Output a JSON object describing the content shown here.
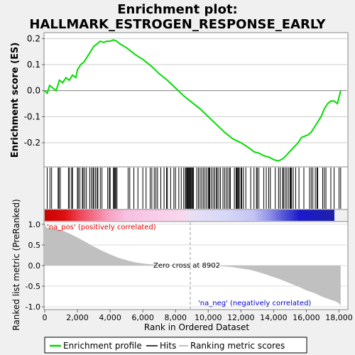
{
  "title_line1": "Enrichment plot:",
  "title_line2": "HALLMARK_ESTROGEN_RESPONSE_EARLY",
  "legend": {
    "profile": "Enrichment profile",
    "hits": "Hits",
    "metric": "Ranking metric scores"
  },
  "colors": {
    "profile": "#00dd00",
    "hits": "#000000",
    "metric_fill": "#c0c0c0",
    "pos_label": "#e00000",
    "neg_label": "#0000cc"
  },
  "chart_data": [
    {
      "type": "line",
      "name": "enrichment-profile",
      "ylabel": "Enrichment score (ES)",
      "ylim": [
        -0.29,
        0.22
      ],
      "yticks": [
        -0.2,
        -0.1,
        0.0,
        0.1,
        0.2
      ],
      "ytick_labels": [
        "-0.2",
        "-0.1",
        "0.0",
        "0.1",
        "0.2"
      ],
      "xlim": [
        0,
        18500
      ],
      "grid": true,
      "x": [
        0,
        150,
        300,
        500,
        700,
        900,
        1100,
        1300,
        1500,
        1700,
        1900,
        2000,
        2200,
        2400,
        2600,
        2800,
        3000,
        3200,
        3400,
        3600,
        3800,
        4000,
        4200,
        4400,
        4600,
        5000,
        5500,
        6000,
        6500,
        7000,
        7500,
        8000,
        8500,
        8900,
        9500,
        10000,
        10500,
        11000,
        11500,
        12000,
        12500,
        12800,
        13100,
        13400,
        13700,
        14000,
        14300,
        14600,
        14900,
        15200,
        15500,
        15700,
        15900,
        16100,
        16300,
        16500,
        16700,
        16900,
        17100,
        17300,
        17500,
        17700,
        17900,
        18100
      ],
      "y": [
        0.0,
        -0.01,
        0.02,
        0.01,
        0.0,
        0.04,
        0.03,
        0.05,
        0.04,
        0.06,
        0.05,
        0.08,
        0.1,
        0.11,
        0.13,
        0.15,
        0.17,
        0.18,
        0.19,
        0.185,
        0.19,
        0.19,
        0.195,
        0.19,
        0.18,
        0.165,
        0.14,
        0.12,
        0.095,
        0.065,
        0.04,
        0.01,
        -0.02,
        -0.04,
        -0.07,
        -0.1,
        -0.13,
        -0.16,
        -0.185,
        -0.2,
        -0.22,
        -0.235,
        -0.24,
        -0.25,
        -0.255,
        -0.265,
        -0.27,
        -0.26,
        -0.24,
        -0.22,
        -0.2,
        -0.18,
        -0.175,
        -0.17,
        -0.16,
        -0.14,
        -0.12,
        -0.1,
        -0.07,
        -0.05,
        -0.04,
        -0.04,
        -0.05,
        0.0
      ]
    },
    {
      "type": "line",
      "name": "ranked-list-metric",
      "ylabel": "Ranked list metric (PreRanked)",
      "xlabel": "Rank in Ordered Dataset",
      "ylim": [
        -1.05,
        1.05
      ],
      "yticks": [
        -1.0,
        -0.5,
        0.0,
        0.5,
        1.0
      ],
      "ytick_labels": [
        "-1.0",
        "-0.5",
        "0.0",
        "0.5",
        "1.0"
      ],
      "xlim": [
        0,
        18500
      ],
      "xticks": [
        0,
        2000,
        4000,
        6000,
        8000,
        10000,
        12000,
        14000,
        16000,
        18000
      ],
      "xtick_labels": [
        "0",
        "2,000",
        "4,000",
        "6,000",
        "8,000",
        "10,000",
        "12,000",
        "14,000",
        "16,000",
        "18,000"
      ],
      "x": [
        0,
        100,
        500,
        1000,
        1500,
        2000,
        2500,
        3000,
        3500,
        4000,
        4500,
        5000,
        5500,
        6000,
        6500,
        7000,
        7500,
        8000,
        8500,
        8902,
        9500,
        10000,
        10500,
        11000,
        11500,
        12000,
        12500,
        13000,
        13500,
        14000,
        14500,
        15000,
        15500,
        16000,
        16500,
        17000,
        17500,
        17800,
        18000,
        18100
      ],
      "y": [
        1.0,
        0.92,
        0.9,
        0.86,
        0.78,
        0.68,
        0.57,
        0.46,
        0.36,
        0.27,
        0.19,
        0.13,
        0.08,
        0.05,
        0.03,
        0.015,
        0.008,
        0.004,
        0.001,
        0.0,
        -0.002,
        -0.005,
        -0.01,
        -0.02,
        -0.04,
        -0.07,
        -0.1,
        -0.15,
        -0.21,
        -0.28,
        -0.35,
        -0.43,
        -0.51,
        -0.6,
        -0.67,
        -0.76,
        -0.83,
        -0.87,
        -0.92,
        -0.98
      ],
      "zero_cross_label": "Zero cross at 8902",
      "zero_cross": 8902,
      "pos_label": "'na_pos' (positively correlated)",
      "neg_label": "'na_neg' (negatively correlated)"
    }
  ],
  "hits": [
    150,
    320,
    420,
    820,
    870,
    950,
    1450,
    1520,
    1650,
    1700,
    2000,
    2050,
    2150,
    2300,
    2350,
    2450,
    2550,
    2750,
    2850,
    2950,
    3000,
    3100,
    3200,
    3250,
    3400,
    3500,
    3850,
    3950,
    4000,
    4200,
    4250,
    4300,
    4350,
    4420,
    5100,
    5200,
    5450,
    5700,
    6000,
    6200,
    6450,
    6550,
    6700,
    6800,
    6900,
    7100,
    7300,
    7450,
    7500,
    7700,
    7900,
    8000,
    8200,
    8350,
    8500,
    8600,
    8650,
    8700,
    8750,
    8800,
    8850,
    8870,
    8900,
    8950,
    9000,
    9050,
    9100,
    9300,
    9400,
    9500,
    9600,
    9700,
    9800,
    9900,
    10000,
    10050,
    10100,
    10200,
    10300,
    10400,
    10500,
    10550,
    10650,
    10750,
    10900,
    11000,
    11100,
    11200,
    11300,
    11350,
    11600,
    11700,
    11750,
    11800,
    11850,
    11900,
    12000,
    12050,
    12150,
    12300,
    12600,
    12800,
    12950,
    13000,
    13100,
    13400,
    13550,
    13700,
    13800,
    14100,
    14300,
    14400,
    14550,
    14600,
    14700,
    14800,
    14900,
    15000,
    15050,
    15100,
    15200,
    15350,
    15550,
    15850,
    16200,
    16300,
    16400,
    16550,
    16650,
    16700,
    17000,
    17100,
    17200,
    17500,
    17700,
    18000,
    18100
  ]
}
